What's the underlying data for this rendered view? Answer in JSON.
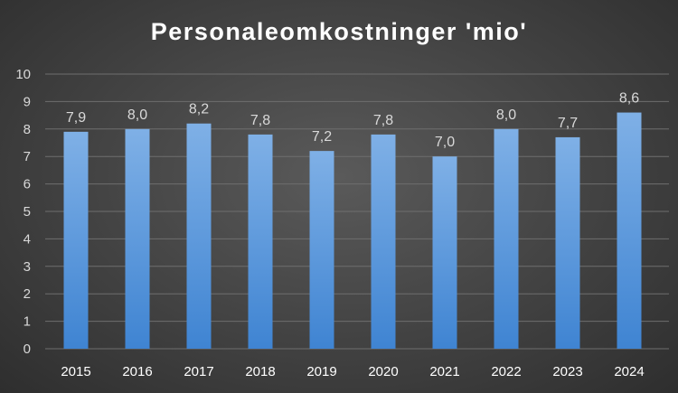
{
  "chart_data": {
    "type": "bar",
    "title": "Personaleomkostninger 'mio'",
    "categories": [
      "2015",
      "2016",
      "2017",
      "2018",
      "2019",
      "2020",
      "2021",
      "2022",
      "2023",
      "2024"
    ],
    "values": [
      7.9,
      8.0,
      8.2,
      7.8,
      7.2,
      7.8,
      7.0,
      8.0,
      7.7,
      8.6
    ],
    "data_labels": [
      "7,9",
      "8,0",
      "8,2",
      "7,8",
      "7,2",
      "7,8",
      "7,0",
      "8,0",
      "7,7",
      "8,6"
    ],
    "y_ticks": [
      "0",
      "1",
      "2",
      "3",
      "4",
      "5",
      "6",
      "7",
      "8",
      "9",
      "10"
    ],
    "ylim": [
      0,
      10
    ],
    "grid": true,
    "legend": "none",
    "colors": {
      "bar_top": "#7fb0e6",
      "bar_bottom": "#3f84d2",
      "grid": "#6e6e6e"
    }
  }
}
